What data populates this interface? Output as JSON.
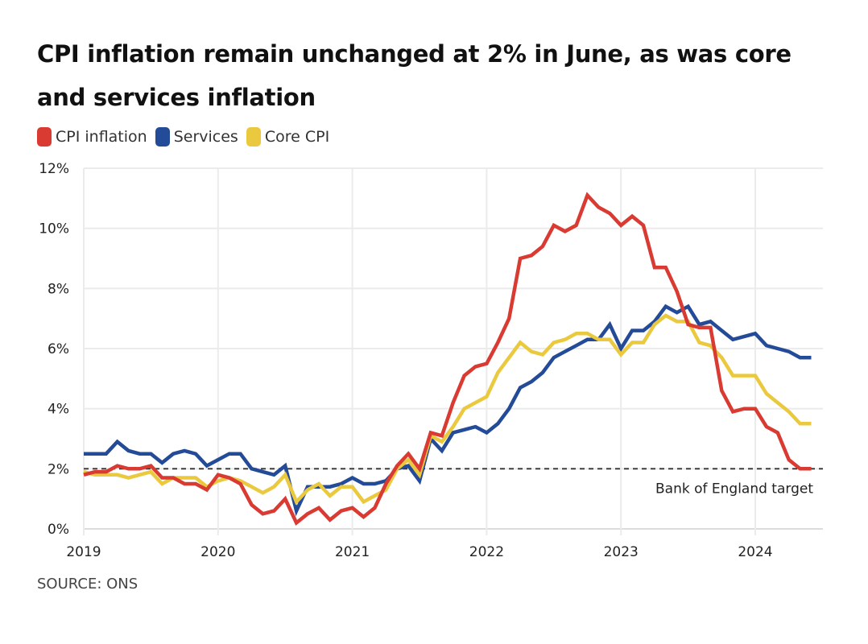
{
  "title": "CPI inflation remain unchanged at 2% in June, as was core and services inflation",
  "source": "SOURCE: ONS",
  "legend": [
    {
      "label": "CPI inflation",
      "color": "#d93a32"
    },
    {
      "label": "Services",
      "color": "#244b97"
    },
    {
      "label": "Core CPI",
      "color": "#ebc93f"
    }
  ],
  "chart_data": {
    "type": "line",
    "title": "CPI inflation remain unchanged at 2% in June, as was core and services inflation",
    "xlabel": "",
    "ylabel": "",
    "x_start": "2019-01",
    "x_end": "2024-06",
    "frequency": "monthly",
    "x_ticks": [
      "2019",
      "2020",
      "2021",
      "2022",
      "2023",
      "2024"
    ],
    "y_ticks": [
      "0%",
      "2%",
      "4%",
      "6%",
      "8%",
      "10%",
      "12%"
    ],
    "ylim": [
      0,
      12
    ],
    "grid": true,
    "legend_position": "top-left",
    "reference_line": {
      "value": 2,
      "label": "Bank of England target",
      "style": "dashed"
    },
    "series": [
      {
        "name": "CPI inflation",
        "color": "#d93a32",
        "values": [
          1.8,
          1.9,
          1.9,
          2.1,
          2.0,
          2.0,
          2.1,
          1.7,
          1.7,
          1.5,
          1.5,
          1.3,
          1.8,
          1.7,
          1.5,
          0.8,
          0.5,
          0.6,
          1.0,
          0.2,
          0.5,
          0.7,
          0.3,
          0.6,
          0.7,
          0.4,
          0.7,
          1.5,
          2.1,
          2.5,
          2.0,
          3.2,
          3.1,
          4.2,
          5.1,
          5.4,
          5.5,
          6.2,
          7.0,
          9.0,
          9.1,
          9.4,
          10.1,
          9.9,
          10.1,
          11.1,
          10.7,
          10.5,
          10.1,
          10.4,
          10.1,
          8.7,
          8.7,
          7.9,
          6.8,
          6.7,
          6.7,
          4.6,
          3.9,
          4.0,
          4.0,
          3.4,
          3.2,
          2.3,
          2.0,
          2.0
        ]
      },
      {
        "name": "Services",
        "color": "#244b97",
        "values": [
          2.5,
          2.5,
          2.5,
          2.9,
          2.6,
          2.5,
          2.5,
          2.2,
          2.5,
          2.6,
          2.5,
          2.1,
          2.3,
          2.5,
          2.5,
          2.0,
          1.9,
          1.8,
          2.1,
          0.6,
          1.4,
          1.4,
          1.4,
          1.5,
          1.7,
          1.5,
          1.5,
          1.6,
          2.0,
          2.1,
          1.6,
          3.0,
          2.6,
          3.2,
          3.3,
          3.4,
          3.2,
          3.5,
          4.0,
          4.7,
          4.9,
          5.2,
          5.7,
          5.9,
          6.1,
          6.3,
          6.3,
          6.8,
          6.0,
          6.6,
          6.6,
          6.9,
          7.4,
          7.2,
          7.4,
          6.8,
          6.9,
          6.6,
          6.3,
          6.4,
          6.5,
          6.1,
          6.0,
          5.9,
          5.7,
          5.7
        ]
      },
      {
        "name": "Core CPI",
        "color": "#ebc93f",
        "values": [
          1.9,
          1.8,
          1.8,
          1.8,
          1.7,
          1.8,
          1.9,
          1.5,
          1.7,
          1.7,
          1.7,
          1.4,
          1.6,
          1.7,
          1.6,
          1.4,
          1.2,
          1.4,
          1.8,
          0.9,
          1.3,
          1.5,
          1.1,
          1.4,
          1.4,
          0.9,
          1.1,
          1.3,
          2.0,
          2.3,
          1.8,
          3.1,
          2.9,
          3.4,
          4.0,
          4.2,
          4.4,
          5.2,
          5.7,
          6.2,
          5.9,
          5.8,
          6.2,
          6.3,
          6.5,
          6.5,
          6.3,
          6.3,
          5.8,
          6.2,
          6.2,
          6.8,
          7.1,
          6.9,
          6.9,
          6.2,
          6.1,
          5.7,
          5.1,
          5.1,
          5.1,
          4.5,
          4.2,
          3.9,
          3.5,
          3.5
        ]
      }
    ]
  }
}
